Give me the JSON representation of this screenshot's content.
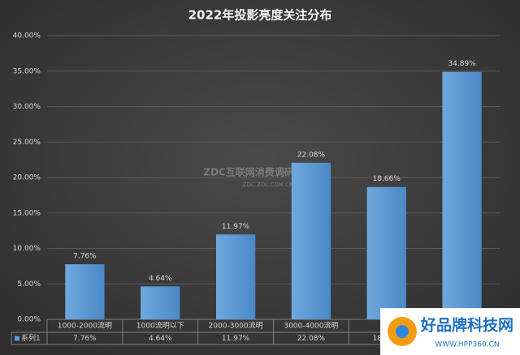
{
  "chart_data": {
    "type": "bar",
    "title": "2022年投影亮度关注分布",
    "categories": [
      "1000-2000流明",
      "1000流明以下",
      "2000-3000流明",
      "3000-4000流明",
      null,
      null
    ],
    "series": [
      {
        "name": "系列1",
        "color": "#5b9bd5",
        "values": [
          7.76,
          4.64,
          11.97,
          22.08,
          18.66,
          34.89
        ],
        "value_labels": [
          "7.76%",
          "4.64%",
          "11.97%",
          "22.08%",
          "18.66%",
          "34.89%"
        ]
      }
    ],
    "ylim": [
      0,
      40
    ],
    "yticks": [
      {
        "value": 0,
        "label": "0.00%"
      },
      {
        "value": 5,
        "label": "5.00%"
      },
      {
        "value": 10,
        "label": "10.00%"
      },
      {
        "value": 15,
        "label": "15.00%"
      },
      {
        "value": 20,
        "label": "20.00%"
      },
      {
        "value": 25,
        "label": "25.00%"
      },
      {
        "value": 30,
        "label": "30.00%"
      },
      {
        "value": 35,
        "label": "35.00%"
      },
      {
        "value": 40,
        "label": "40.00%"
      }
    ],
    "grid": true,
    "watermark": {
      "title": "ZDC互联网消费调研中心",
      "url": "ZDC.ZOL.COM.CN"
    },
    "logo": {
      "title": "好品牌科技网",
      "url": "WWW.HPP360.CN"
    }
  }
}
